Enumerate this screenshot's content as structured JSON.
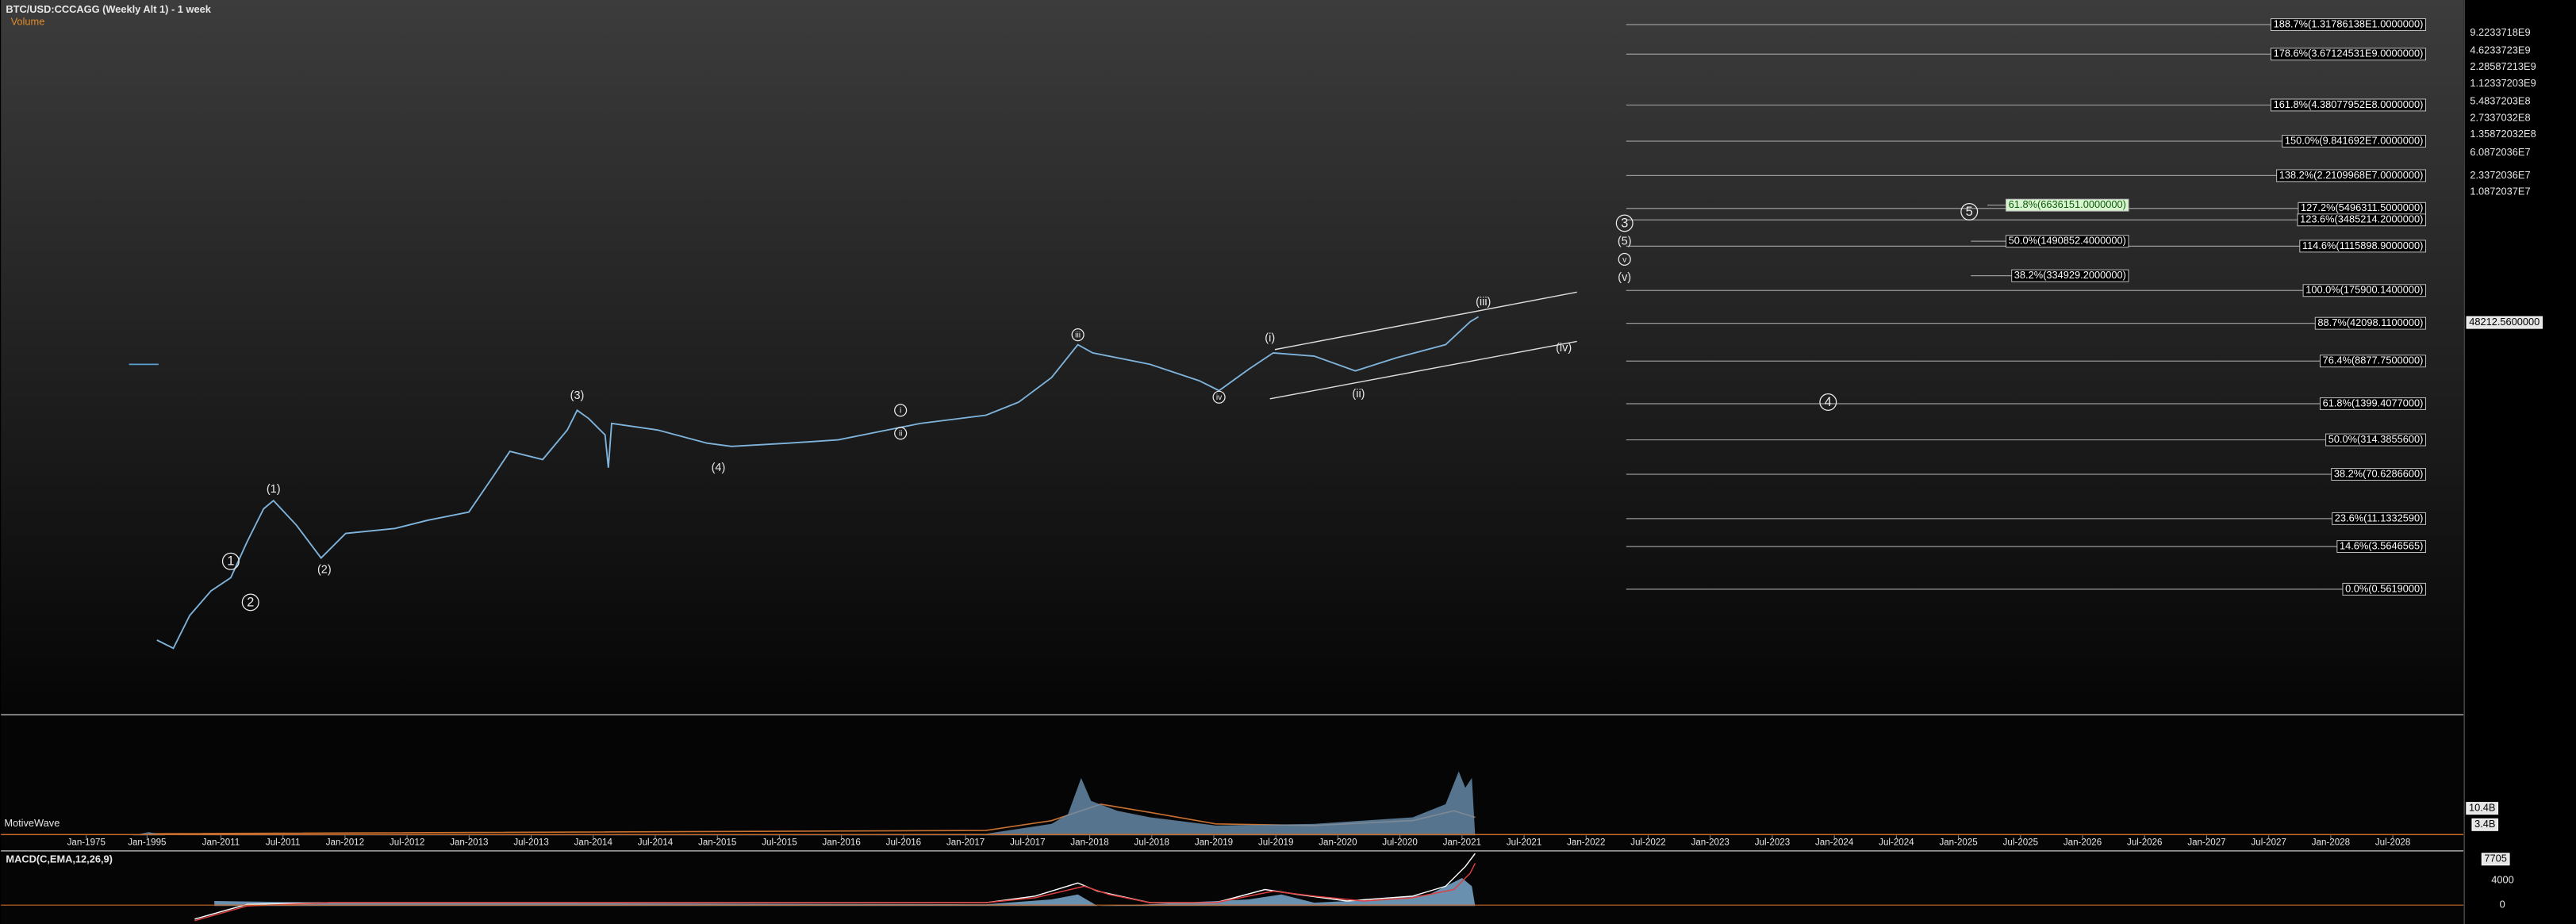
{
  "header": {
    "title": "BTC/USD:CCCAGG (Weekly Alt 1) - 1 week",
    "volume_label": "Volume"
  },
  "price_axis": {
    "ticks": [
      "9.2233718E9",
      "4.6233723E9",
      "2.28587213E9",
      "1.12337203E9",
      "5.4837203E8",
      "2.7337032E8",
      "1.35872032E8",
      "6.0872036E7",
      "2.3372036E7",
      "1.0872037E7"
    ],
    "last_price": "48212.5600000"
  },
  "fib_levels": [
    "188.7%(1.31786138E1.0000000)",
    "178.6%(3.67124531E9.0000000)",
    "161.8%(4.38077952E8.0000000)",
    "150.0%(9.841692E7.0000000)",
    "138.2%(2.2109968E7.0000000)",
    "127.2%(5496311.5000000)",
    "123.6%(3485214.2000000)",
    "114.6%(1115898.9000000)",
    "100.0%(175900.1400000)",
    "88.7%(42098.1100000)",
    "76.4%(8877.7500000)",
    "61.8%(1399.4077000)",
    "50.0%(314.3855600)",
    "38.2%(70.6286600)",
    "23.6%(11.1332590)",
    "14.6%(3.5646565)",
    "0.0%(0.5619000)"
  ],
  "projection_fibs": [
    "61.8%(6636151.0000000)",
    "50.0%(1490852.4000000)",
    "38.2%(334929.2000000)"
  ],
  "wave_labels": [
    "1",
    "2",
    "(1)",
    "(2)",
    "(3)",
    "(4)",
    "i",
    "ii",
    "iii",
    "iv",
    "(i)",
    "(ii)",
    "(iii)",
    "(iv)",
    "3",
    "(5)",
    "v",
    "(v)",
    "5",
    "4"
  ],
  "time_axis": [
    "Jan-1975",
    "Jan-1995",
    "Jan-2011",
    "Jul-2011",
    "Jan-2012",
    "Jul-2012",
    "Jan-2013",
    "Jul-2013",
    "Jan-2014",
    "Jul-2014",
    "Jan-2015",
    "Jul-2015",
    "Jan-2016",
    "Jul-2016",
    "Jan-2017",
    "Jul-2017",
    "Jan-2018",
    "Jul-2018",
    "Jan-2019",
    "Jul-2019",
    "Jan-2020",
    "Jul-2020",
    "Jan-2021",
    "Jul-2021",
    "Jan-2022",
    "Jul-2022",
    "Jan-2023",
    "Jul-2023",
    "Jan-2024",
    "Jul-2024",
    "Jan-2025",
    "Jul-2025",
    "Jan-2026",
    "Jul-2026",
    "Jan-2027",
    "Jul-2027",
    "Jan-2028",
    "Jul-2028"
  ],
  "volume_pane": {
    "brand": "MotiveWave",
    "ticks": [
      "10.4B",
      "3.4B"
    ]
  },
  "macd_pane": {
    "title": "MACD(C,EMA,12,26,9)",
    "ticks": [
      "7705",
      "4000",
      "0"
    ]
  }
}
